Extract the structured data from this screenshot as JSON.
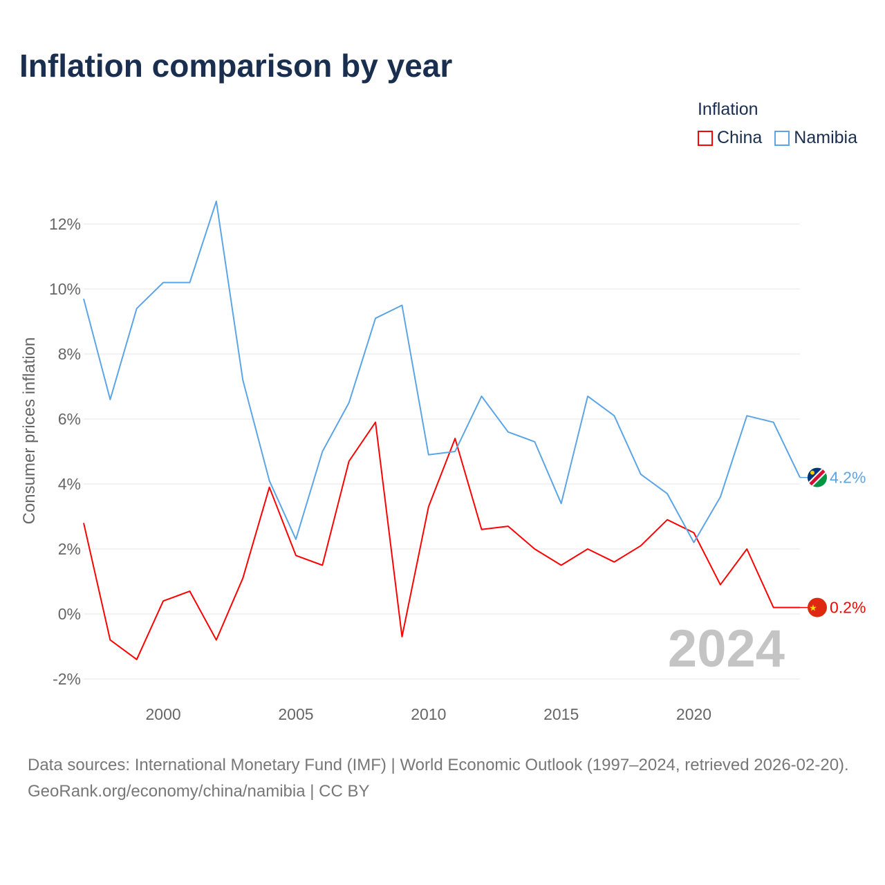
{
  "title": "Inflation comparison by year",
  "legend": {
    "title": "Inflation",
    "items": [
      {
        "label": "China",
        "color": "#ff0000"
      },
      {
        "label": "Namibia",
        "color": "#5ba4e6"
      }
    ]
  },
  "chart_data": {
    "type": "line",
    "title": "Inflation comparison by year",
    "xlabel": "",
    "ylabel": "Consumer prices inflation",
    "x": [
      1997,
      1998,
      1999,
      2000,
      2001,
      2002,
      2003,
      2004,
      2005,
      2006,
      2007,
      2008,
      2009,
      2010,
      2011,
      2012,
      2013,
      2014,
      2015,
      2016,
      2017,
      2018,
      2019,
      2020,
      2021,
      2022,
      2023,
      2024
    ],
    "xticks": [
      {
        "v": 2000,
        "label": "2000"
      },
      {
        "v": 2005,
        "label": "2005"
      },
      {
        "v": 2010,
        "label": "2010"
      },
      {
        "v": 2015,
        "label": "2015"
      },
      {
        "v": 2020,
        "label": "2020"
      }
    ],
    "yticks": [
      {
        "v": -2,
        "label": "-2%"
      },
      {
        "v": 0,
        "label": "0%"
      },
      {
        "v": 2,
        "label": "2%"
      },
      {
        "v": 4,
        "label": "4%"
      },
      {
        "v": 6,
        "label": "6%"
      },
      {
        "v": 8,
        "label": "8%"
      },
      {
        "v": 10,
        "label": "10%"
      },
      {
        "v": 12,
        "label": "12%"
      }
    ],
    "xlim": [
      1997,
      2024
    ],
    "ylim": [
      -2.6,
      13.5
    ],
    "grid": true,
    "legend_position": "top-right",
    "year_watermark": "2024",
    "series": [
      {
        "name": "China",
        "color": "#ff0000",
        "end_label": "0.2%",
        "values": [
          2.8,
          -0.8,
          -1.4,
          0.4,
          0.7,
          -0.8,
          1.1,
          3.9,
          1.8,
          1.5,
          4.7,
          5.9,
          -0.7,
          3.3,
          5.4,
          2.6,
          2.7,
          2.0,
          1.5,
          2.0,
          1.6,
          2.1,
          2.9,
          2.5,
          0.9,
          2.0,
          0.2,
          0.2
        ]
      },
      {
        "name": "Namibia",
        "color": "#5ba4e6",
        "end_label": "4.2%",
        "values": [
          9.7,
          6.6,
          9.4,
          10.2,
          10.2,
          12.7,
          7.2,
          4.1,
          2.3,
          5.0,
          6.5,
          9.1,
          9.5,
          4.9,
          5.0,
          6.7,
          5.6,
          5.3,
          3.4,
          6.7,
          6.1,
          4.3,
          3.7,
          2.2,
          3.6,
          6.1,
          5.9,
          4.2
        ]
      }
    ]
  },
  "footer": {
    "sources": "Data sources: International Monetary Fund (IMF) | World Economic Outlook (1997–2024, retrieved 2026-02-20).",
    "link": "GeoRank.org/economy/china/namibia | CC BY"
  }
}
